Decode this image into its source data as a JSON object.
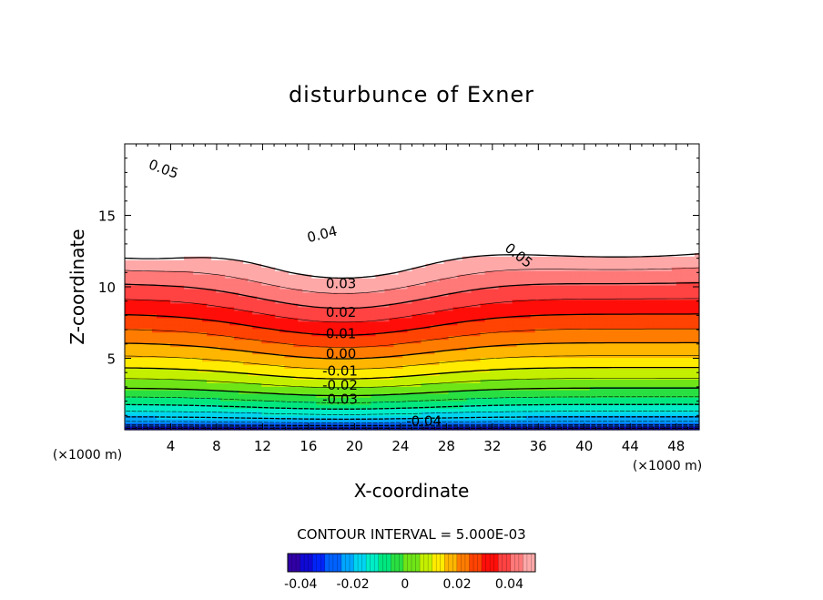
{
  "chart_data": {
    "type": "heatmap",
    "subtype": "filled-contour",
    "title": "disturbunce of Exner",
    "xlabel": "X-coordinate",
    "ylabel": "Z-coordinate",
    "x_unit_label": "(×1000 m)",
    "x_unit_label_right": "(×1000 m)",
    "xlim": [
      0,
      50
    ],
    "ylim": [
      0,
      20
    ],
    "x_ticks": [
      4,
      8,
      12,
      16,
      20,
      24,
      28,
      32,
      36,
      40,
      44,
      48
    ],
    "y_ticks": [
      5,
      10,
      15
    ],
    "contour_interval_text": "CONTOUR INTERVAL = 5.000E-03",
    "contour_interval": 0.005,
    "value_range": [
      -0.045,
      0.05
    ],
    "field": {
      "surface_value": -0.045,
      "upper_value": 0.05,
      "mountain_center_x": 19,
      "mountain_width": 7,
      "valley_depth": 4.5
    },
    "contour_labels": [
      {
        "text": "0.05",
        "x": 2,
        "z": 18.3,
        "angle": 20
      },
      {
        "text": "0.04",
        "x": 16,
        "z": 13.1,
        "angle": -14
      },
      {
        "text": "0.05",
        "x": 33,
        "z": 12.6,
        "angle": 38
      },
      {
        "text": "0.03",
        "x": 17.5,
        "z": 9.9,
        "angle": 0
      },
      {
        "text": "0.02",
        "x": 17.5,
        "z": 7.9,
        "angle": 0
      },
      {
        "text": "0.01",
        "x": 17.5,
        "z": 6.4,
        "angle": 0
      },
      {
        "text": "0.00",
        "x": 17.5,
        "z": 5.0,
        "angle": 0
      },
      {
        "text": "-0.01",
        "x": 17.2,
        "z": 3.8,
        "angle": 0
      },
      {
        "text": "-0.02",
        "x": 17.2,
        "z": 2.8,
        "angle": 0
      },
      {
        "text": "-0.03",
        "x": 17.2,
        "z": 1.8,
        "angle": 0
      },
      {
        "text": "-0.04",
        "x": 24.5,
        "z": 0.3,
        "angle": 0
      }
    ],
    "colorbar": {
      "ticks": [
        -0.04,
        -0.02,
        0,
        0.02,
        0.04
      ],
      "tick_labels": [
        "-0.04",
        "-0.02",
        "0",
        "0.02",
        "0.04"
      ]
    },
    "grid": false
  }
}
